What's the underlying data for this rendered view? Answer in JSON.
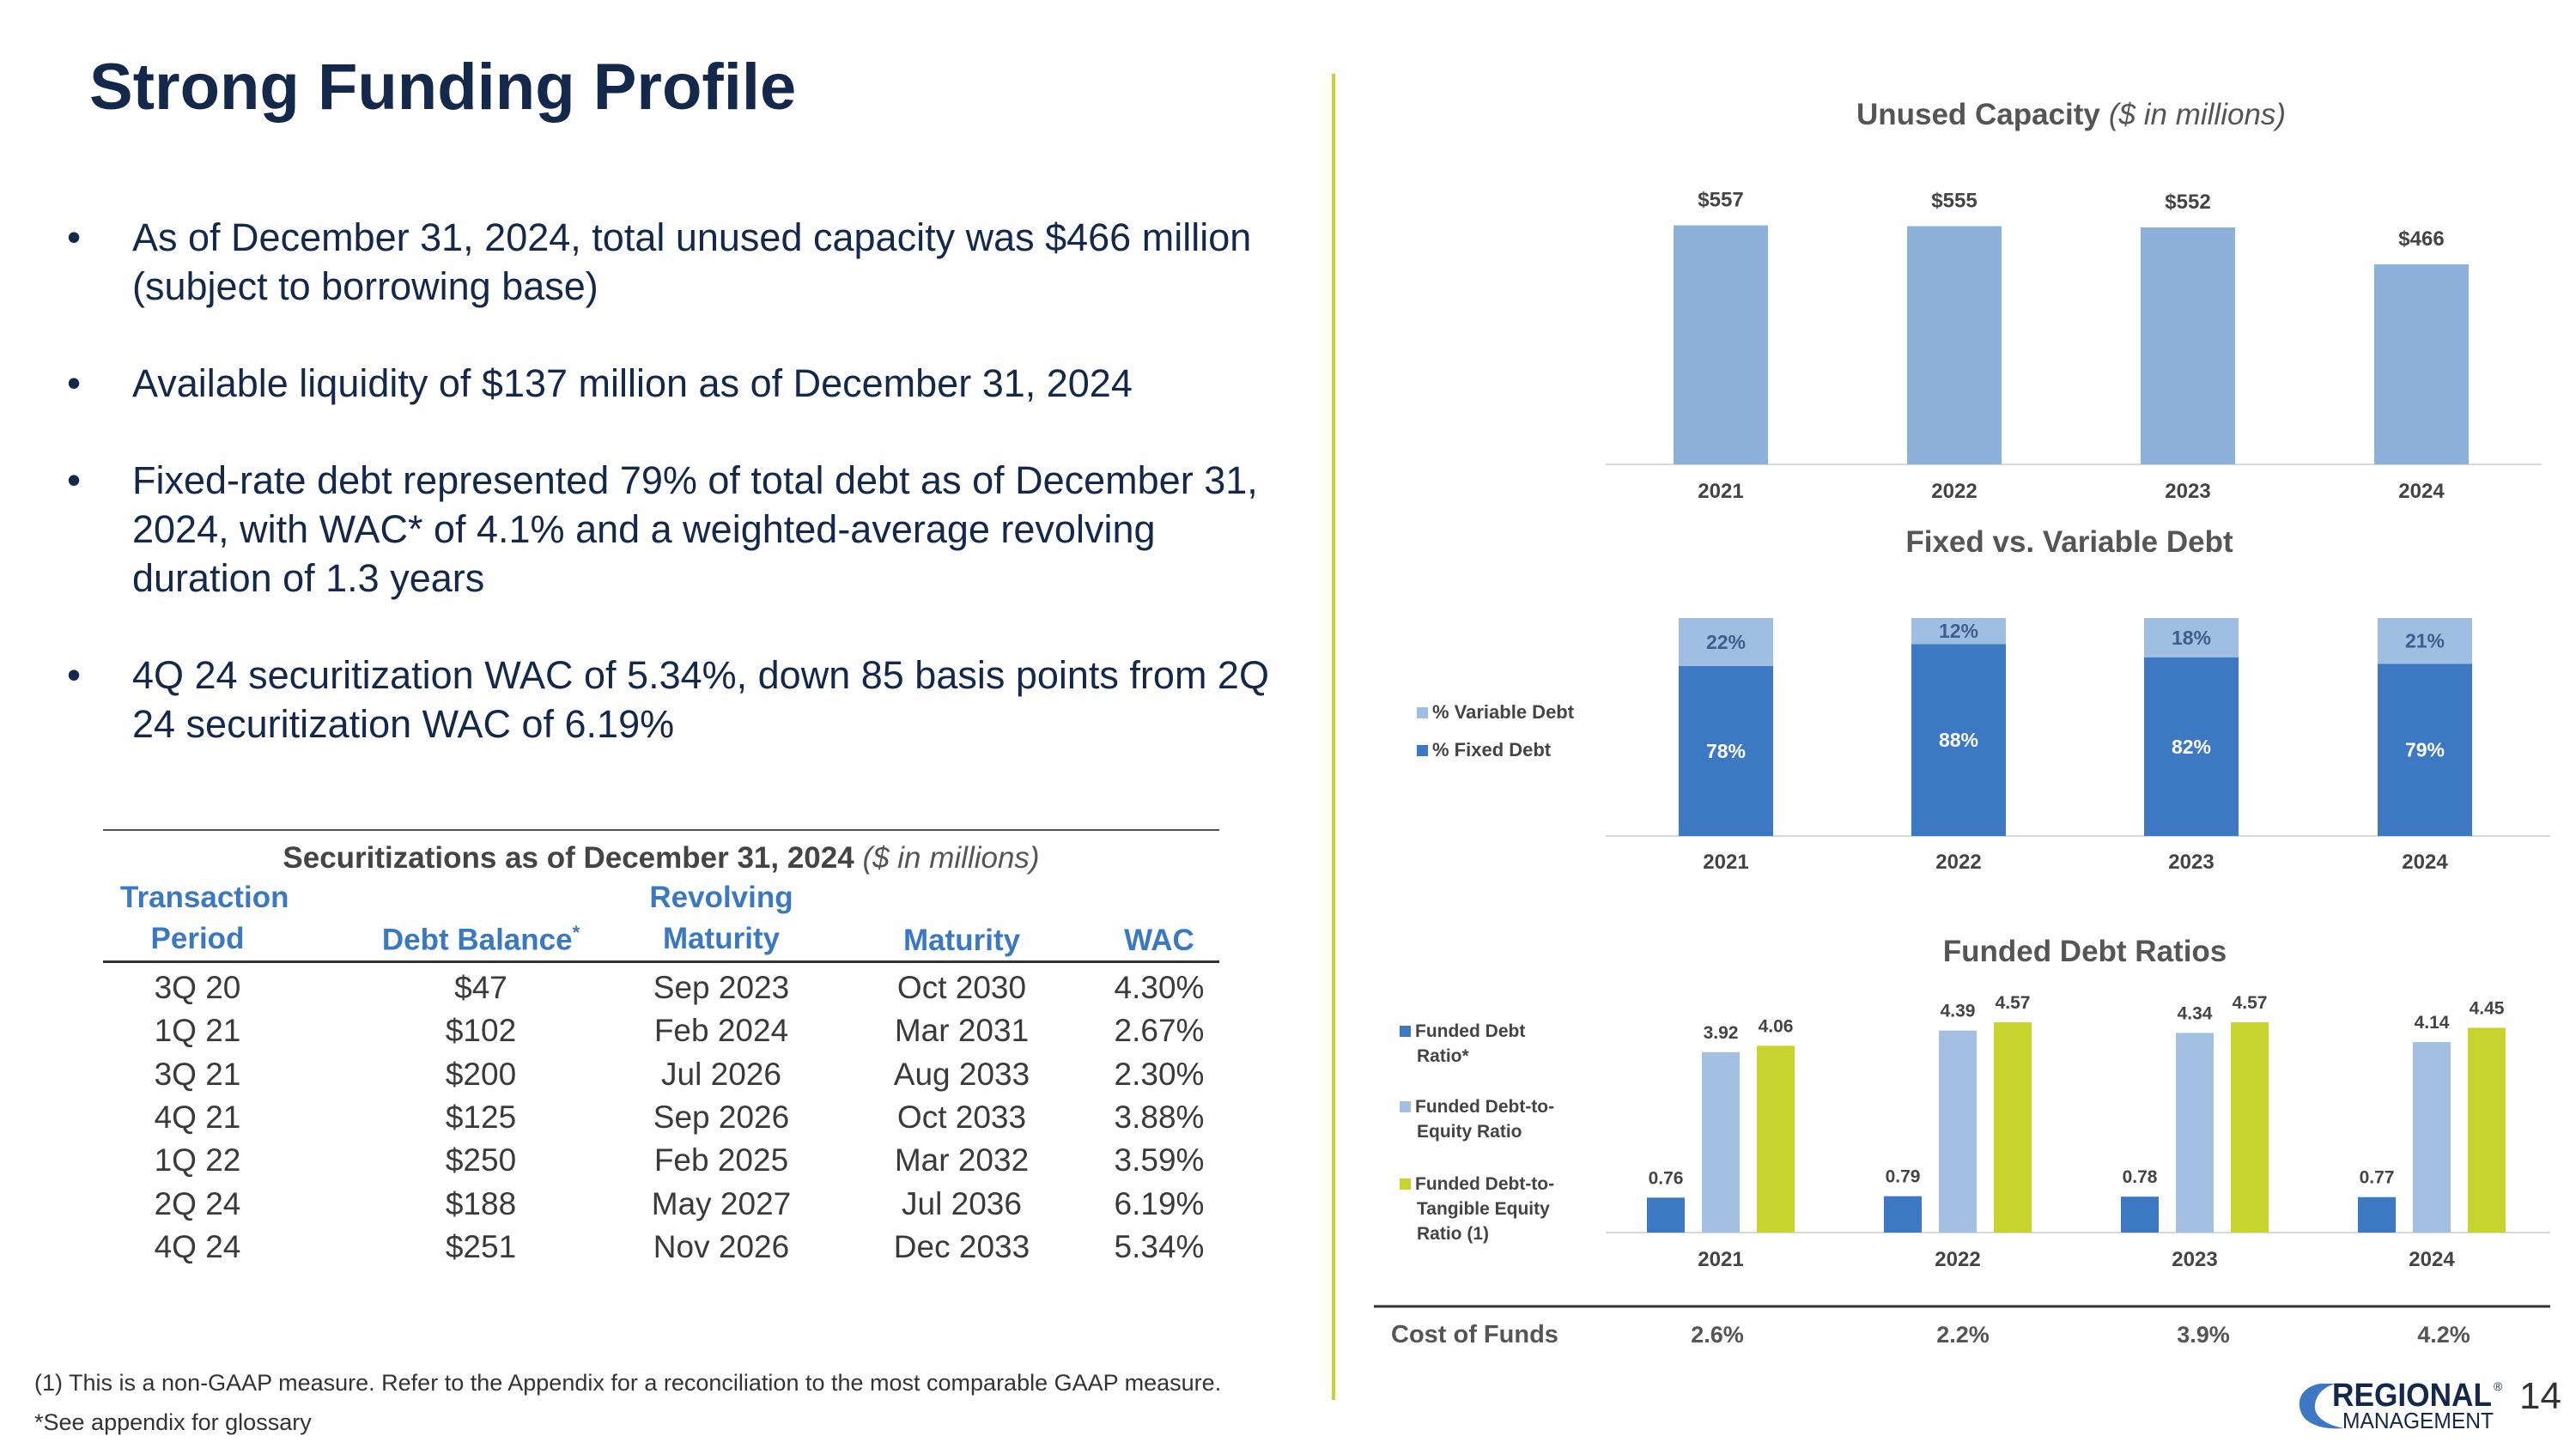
{
  "title": "Strong Funding Profile",
  "bullets": [
    "As of December 31, 2024, total unused capacity was $466 million (subject to borrowing base)",
    "Available liquidity of $137 million as of December 31, 2024",
    "Fixed-rate debt represented 79% of total debt as of December 31, 2024, with WAC* of 4.1% and a weighted-average revolving duration of 1.3 years",
    "4Q 24 securitization WAC of 5.34%, down 85 basis points from 2Q 24 securitization WAC of 6.19%"
  ],
  "table": {
    "title_bold": "Securitizations as of December 31, 2024",
    "title_italic": "($ in millions)",
    "headers": {
      "period_line1": "Transaction",
      "period_line2": "Period",
      "balance": "Debt Balance",
      "balance_mark": "*",
      "revolving_line1": "Revolving",
      "revolving_line2": "Maturity",
      "maturity": "Maturity",
      "wac": "WAC"
    },
    "rows": [
      [
        "3Q 20",
        "$47",
        "Sep 2023",
        "Oct 2030",
        "4.30%"
      ],
      [
        "1Q 21",
        "$102",
        "Feb 2024",
        "Mar 2031",
        "2.67%"
      ],
      [
        "3Q 21",
        "$200",
        "Jul 2026",
        "Aug 2033",
        "2.30%"
      ],
      [
        "4Q 21",
        "$125",
        "Sep 2026",
        "Oct 2033",
        "3.88%"
      ],
      [
        "1Q 22",
        "$250",
        "Feb 2025",
        "Mar 2032",
        "3.59%"
      ],
      [
        "2Q 24",
        "$188",
        "May 2027",
        "Jul 2036",
        "6.19%"
      ],
      [
        "4Q 24",
        "$251",
        "Nov 2026",
        "Dec 2033",
        "5.34%"
      ]
    ]
  },
  "chart_data": [
    {
      "type": "bar",
      "title": "Unused Capacity",
      "subtitle": "($ in millions)",
      "categories": [
        "2021",
        "2022",
        "2023",
        "2024"
      ],
      "values": [
        557,
        555,
        552,
        466
      ],
      "value_labels": [
        "$557",
        "$555",
        "$552",
        "$466"
      ],
      "ylim": [
        0,
        600
      ],
      "color": "#8db0da"
    },
    {
      "type": "bar",
      "stacked": true,
      "title": "Fixed vs. Variable Debt",
      "categories": [
        "2021",
        "2022",
        "2023",
        "2024"
      ],
      "series": [
        {
          "name": "% Fixed Debt",
          "values": [
            78,
            88,
            82,
            79
          ],
          "labels": [
            "78%",
            "88%",
            "82%",
            "79%"
          ],
          "color": "#3d78c2"
        },
        {
          "name": "% Variable Debt",
          "values": [
            22,
            12,
            18,
            21
          ],
          "labels": [
            "22%",
            "12%",
            "18%",
            "21%"
          ],
          "color": "#9fbfe2"
        }
      ],
      "legend_order": [
        "% Variable Debt",
        "% Fixed Debt"
      ],
      "ylim": [
        0,
        100
      ]
    },
    {
      "type": "bar",
      "title": "Funded Debt Ratios",
      "categories": [
        "2021",
        "2022",
        "2023",
        "2024"
      ],
      "series": [
        {
          "name": "Funded Debt Ratio*",
          "legend_lines": [
            "Funded Debt",
            "Ratio*"
          ],
          "values": [
            0.76,
            0.79,
            0.78,
            0.77
          ],
          "labels": [
            "0.76",
            "0.79",
            "0.78",
            "0.77"
          ],
          "color": "#3d78c2"
        },
        {
          "name": "Funded Debt-to-Equity Ratio",
          "legend_lines": [
            "Funded Debt-to-",
            "Equity Ratio"
          ],
          "values": [
            3.92,
            4.39,
            4.34,
            4.14
          ],
          "labels": [
            "3.92",
            "4.39",
            "4.34",
            "4.14"
          ],
          "color": "#a3c0e3"
        },
        {
          "name": "Funded Debt-to-Tangible Equity Ratio (1)",
          "legend_lines": [
            "Funded Debt-to-",
            "Tangible Equity",
            "Ratio (1)"
          ],
          "values": [
            4.06,
            4.57,
            4.57,
            4.45
          ],
          "labels": [
            "4.06",
            "4.57",
            "4.57",
            "4.45"
          ],
          "color": "#c6d42d"
        }
      ],
      "ylim": [
        0,
        5
      ]
    }
  ],
  "cost_of_funds": {
    "label": "Cost of Funds",
    "values": [
      "2.6%",
      "2.2%",
      "3.9%",
      "4.2%"
    ]
  },
  "footnotes": [
    "(1) This is a non-GAAP measure. Refer to the Appendix for a reconciliation to the most comparable GAAP measure.",
    "*See appendix for glossary"
  ],
  "logo": {
    "line1": "REGIONAL",
    "mark": "®",
    "line2": "MANAGEMENT"
  },
  "page_number": "14",
  "colors": {
    "navy": "#14284b",
    "blue": "#3d78c2",
    "lightblue": "#8db0da",
    "lime": "#c6d42d"
  }
}
